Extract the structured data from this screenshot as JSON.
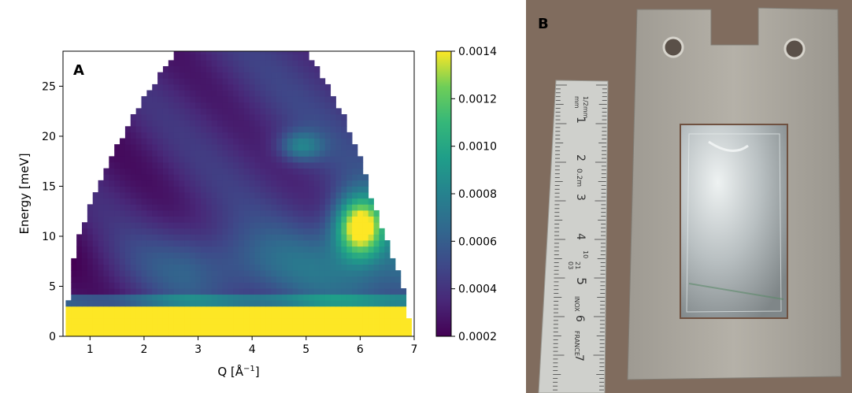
{
  "figure": {
    "panel_a_letter": "A",
    "panel_b_letter": "B"
  },
  "chart_data": {
    "type": "heatmap",
    "title": "",
    "xlabel": "Q [Å$^{-1}$]",
    "xlabel_main": "Q [Å",
    "xlabel_sup": "−1",
    "xlabel_end": "]",
    "ylabel": "Energy [meV]",
    "xlim": [
      0.5,
      7
    ],
    "ylim": [
      0,
      28.5
    ],
    "x_ticks": [
      1,
      2,
      3,
      4,
      5,
      6,
      7
    ],
    "x_tick_labels": [
      "1",
      "2",
      "3",
      "4",
      "5",
      "6",
      "7"
    ],
    "y_ticks": [
      0,
      5,
      10,
      15,
      20,
      25
    ],
    "y_tick_labels": [
      "0",
      "5",
      "10",
      "15",
      "20",
      "25"
    ],
    "colorbar": {
      "vmin": 0.0002,
      "vmax": 0.0014,
      "ticks": [
        0.0002,
        0.0004,
        0.0006,
        0.0008,
        0.001,
        0.0012,
        0.0014
      ],
      "tick_labels": [
        "0.0002",
        "0.0004",
        "0.0006",
        "0.0008",
        "0.0010",
        "0.0012",
        "0.0014"
      ],
      "colormap": "viridis"
    },
    "coverage_boundary": {
      "left_edge_q_at_energy": [
        [
          0.6,
          3.5
        ],
        [
          0.7,
          7.5
        ],
        [
          0.8,
          10
        ],
        [
          1.0,
          13
        ],
        [
          1.2,
          15.5
        ],
        [
          1.5,
          19
        ],
        [
          1.8,
          22
        ],
        [
          2.2,
          25.5
        ],
        [
          2.6,
          28.5
        ]
      ],
      "right_edge_q_at_energy": [
        [
          5.0,
          28.5
        ],
        [
          5.3,
          26
        ],
        [
          5.7,
          22
        ],
        [
          6.0,
          18
        ],
        [
          6.2,
          14
        ],
        [
          6.4,
          11
        ],
        [
          6.6,
          8
        ],
        [
          6.8,
          5
        ],
        [
          6.9,
          2
        ]
      ]
    },
    "features": [
      {
        "description": "elastic line",
        "q_range": [
          0.6,
          7.0
        ],
        "energy_range": [
          0,
          3
        ],
        "intensity": 0.0014
      },
      {
        "description": "strong inelastic intensity",
        "q_range": [
          5.7,
          6.3
        ],
        "energy_range": [
          9,
          13
        ],
        "intensity": 0.0014
      },
      {
        "description": "background",
        "intensity": 0.0003
      }
    ]
  },
  "photo": {
    "ruler_markings": [
      "1/2mm",
      "mm",
      "1",
      "2",
      "0.2m",
      "3",
      "4",
      "10",
      "21",
      "03",
      "5",
      "INOX",
      "6",
      "FRANCE",
      "7"
    ],
    "colors": {
      "background": "#8a7666",
      "plate": "#a8a49c",
      "foil": "#c9cfd0",
      "ruler": "#cfd0cc"
    }
  }
}
